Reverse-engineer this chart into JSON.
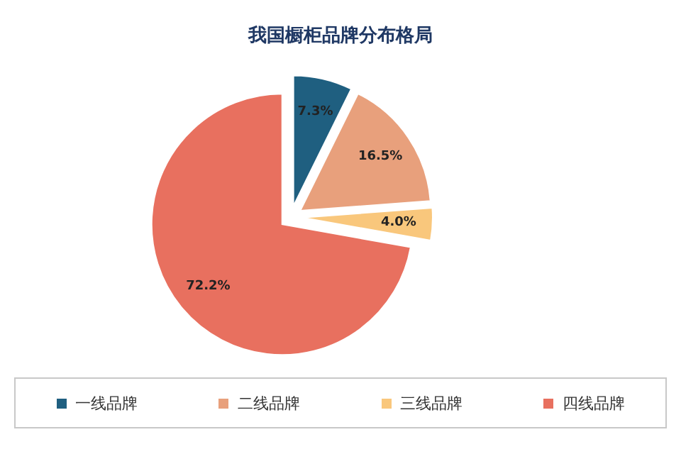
{
  "chart_data": {
    "type": "pie",
    "title": "我国橱柜品牌分布格局",
    "categories": [
      "一线品牌",
      "二线品牌",
      "三线品牌",
      "四线品牌"
    ],
    "values": [
      7.3,
      16.5,
      4.0,
      72.2
    ],
    "colors": [
      "#1f5f80",
      "#e8a07c",
      "#f9c77c",
      "#e8705f"
    ],
    "value_labels": [
      "7.3%",
      "16.5%",
      "4.0%",
      "72.2%"
    ],
    "legend": "bottom"
  }
}
